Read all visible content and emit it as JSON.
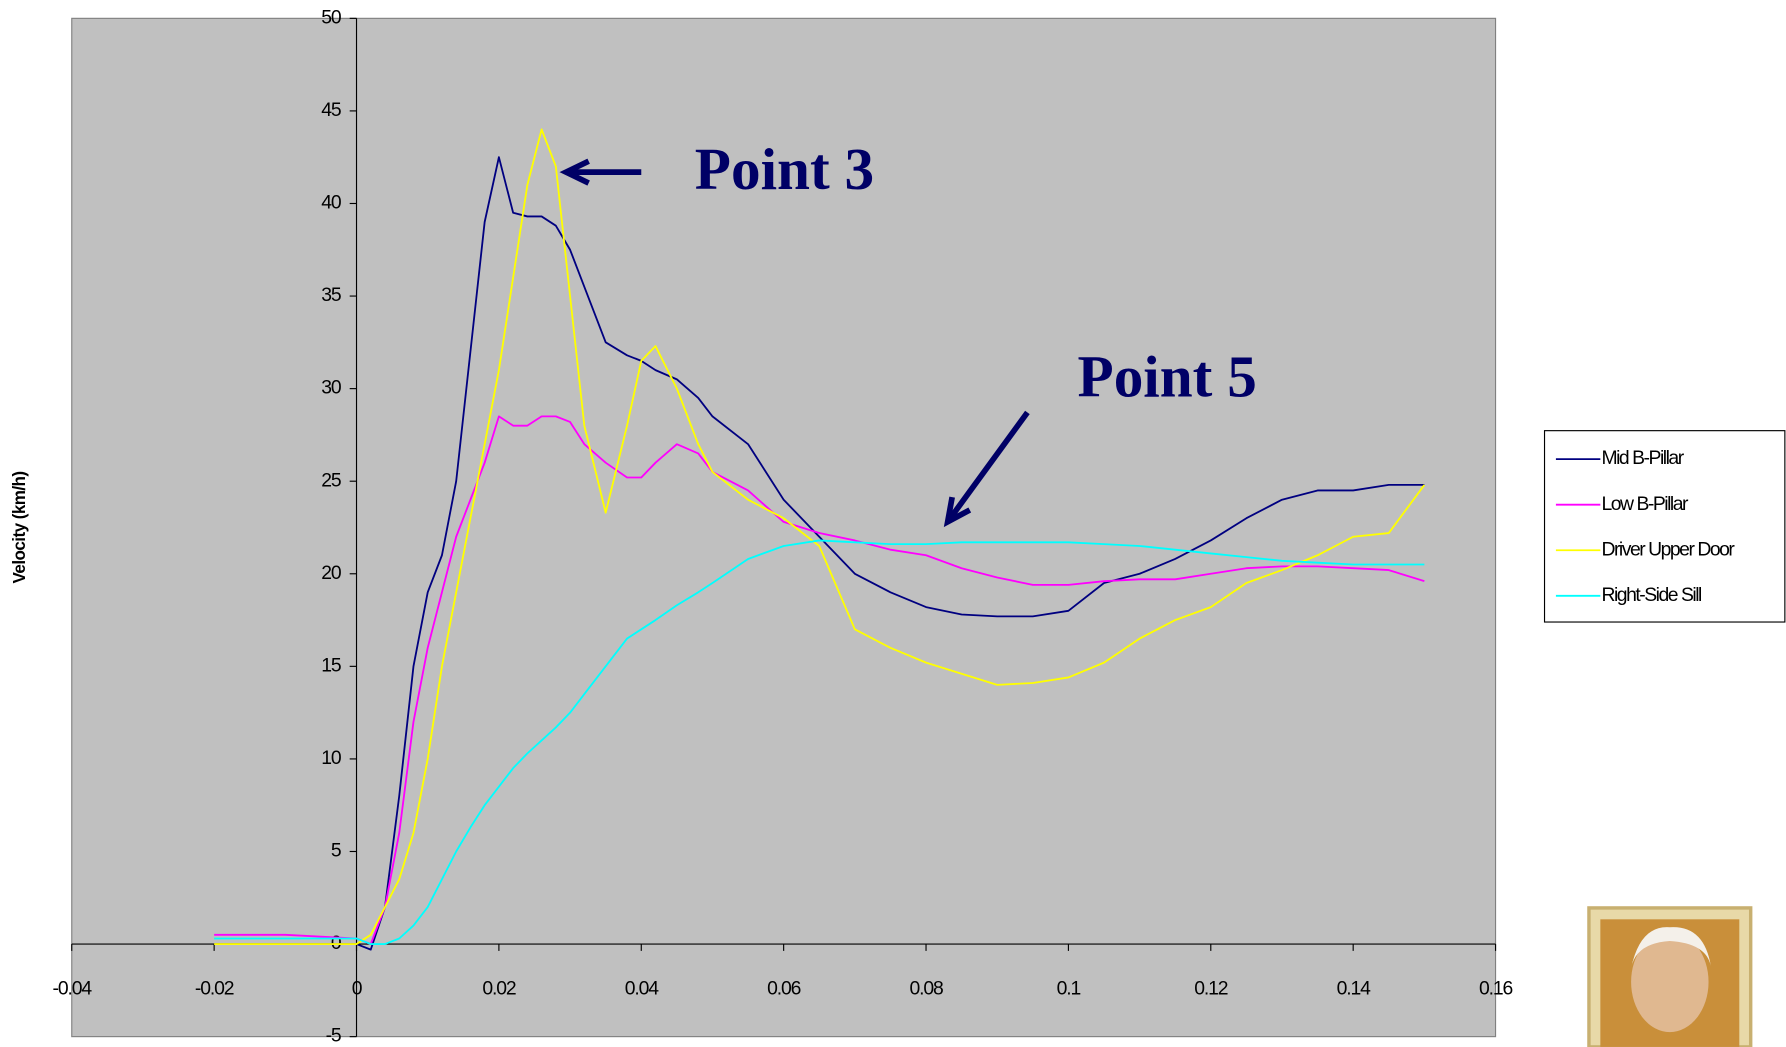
{
  "chart_data": {
    "type": "line",
    "y_label": "Velocity (km/h)",
    "x": [
      -0.02,
      -0.01,
      0,
      0.002,
      0.004,
      0.006,
      0.008,
      0.01,
      0.012,
      0.014,
      0.016,
      0.018,
      0.02,
      0.022,
      0.024,
      0.026,
      0.028,
      0.03,
      0.032,
      0.035,
      0.038,
      0.04,
      0.042,
      0.045,
      0.048,
      0.05,
      0.055,
      0.06,
      0.065,
      0.07,
      0.075,
      0.08,
      0.085,
      0.09,
      0.095,
      0.1,
      0.105,
      0.11,
      0.115,
      0.12,
      0.125,
      0.13,
      0.135,
      0.14,
      0.145,
      0.15
    ],
    "series": [
      {
        "name": "Mid B-Pillar",
        "color": "#000080",
        "values": [
          0,
          0,
          0,
          -0.3,
          2,
          8,
          15,
          19,
          21,
          25,
          32,
          39,
          42.5,
          39.5,
          39.3,
          39.3,
          38.8,
          37.5,
          35.5,
          32.5,
          31.8,
          31.5,
          31,
          30.5,
          29.5,
          28.5,
          27,
          24,
          22,
          20,
          19,
          18.2,
          17.8,
          17.7,
          17.7,
          18,
          19.5,
          20,
          20.8,
          21.8,
          23,
          24,
          24.5,
          24.5,
          24.8,
          24.8
        ]
      },
      {
        "name": "Low B-Pillar",
        "color": "#ff00ff",
        "values": [
          0.5,
          0.5,
          0.3,
          0,
          2,
          6,
          12,
          16,
          19,
          22,
          24,
          26,
          28.5,
          28,
          28,
          28.5,
          28.5,
          28.2,
          27,
          26,
          25.2,
          25.2,
          26,
          27,
          26.5,
          25.5,
          24.5,
          22.8,
          22.2,
          21.8,
          21.3,
          21,
          20.3,
          19.8,
          19.4,
          19.4,
          19.6,
          19.7,
          19.7,
          20,
          20.3,
          20.4,
          20.4,
          20.3,
          20.2,
          19.6
        ]
      },
      {
        "name": "Driver Upper Door",
        "color": "#ffff00",
        "values": [
          0,
          0,
          0,
          0.5,
          2,
          3.5,
          6,
          10,
          15,
          19,
          23,
          27,
          31,
          36,
          41,
          44,
          42,
          35,
          28,
          23.3,
          28,
          31.5,
          32.3,
          30,
          27,
          25.5,
          24,
          23,
          21.5,
          17,
          16,
          15.2,
          14.6,
          14,
          14.1,
          14.4,
          15.2,
          16.5,
          17.5,
          18.2,
          19.5,
          20.2,
          21,
          22,
          22.2,
          24.8
        ]
      },
      {
        "name": "Right-Side Sill",
        "color": "#00ffff",
        "values": [
          0.3,
          0.3,
          0.3,
          0,
          0,
          0.3,
          1,
          2,
          3.5,
          5,
          6.3,
          7.5,
          8.5,
          9.5,
          10.3,
          11,
          11.7,
          12.5,
          13.5,
          15,
          16.5,
          17,
          17.5,
          18.3,
          19,
          19.5,
          20.8,
          21.5,
          21.8,
          21.7,
          21.6,
          21.6,
          21.7,
          21.7,
          21.7,
          21.7,
          21.6,
          21.5,
          21.3,
          21.1,
          20.9,
          20.7,
          20.6,
          20.5,
          20.5,
          20.5
        ]
      }
    ],
    "xlim": [
      -0.04,
      0.16
    ],
    "xticks": [
      -0.04,
      -0.02,
      0,
      0.02,
      0.04,
      0.06,
      0.08,
      0.1,
      0.12,
      0.14,
      0.16
    ],
    "ylim": [
      -5,
      50
    ],
    "yticks": [
      -5,
      0,
      5,
      10,
      15,
      20,
      25,
      30,
      35,
      40,
      45,
      50
    ],
    "legend": "right",
    "annotations": [
      "Point 3",
      "Point 5"
    ]
  }
}
